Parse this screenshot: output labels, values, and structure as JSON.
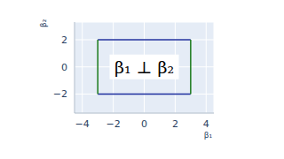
{
  "chart_data": {
    "type": "line",
    "annotation": "β₁ ⊥ β₂",
    "x_label": "β₁",
    "y_label": "β₂",
    "xlim": [
      -4.5,
      4.5
    ],
    "xticks": [
      {
        "value": -4,
        "label": "−4"
      },
      {
        "value": -2,
        "label": "−2"
      },
      0,
      2,
      4
    ],
    "ylim": [
      -3.4,
      3.3
    ],
    "yticks": [
      {
        "value": -2,
        "label": "−2"
      },
      0,
      2
    ],
    "grid": true,
    "series": [
      {
        "color": "#1f2f9e",
        "x": [
          -3,
          3
        ],
        "values": [
          2,
          2
        ]
      },
      {
        "color": "#1f2f9e",
        "x": [
          -3,
          3
        ],
        "values": [
          -2,
          -2
        ]
      },
      {
        "color": "#1b7a1b",
        "x": [
          -3,
          -3
        ],
        "values": [
          -2,
          2
        ]
      },
      {
        "color": "#1b7a1b",
        "x": [
          3,
          3
        ],
        "values": [
          -2,
          2
        ]
      }
    ]
  }
}
